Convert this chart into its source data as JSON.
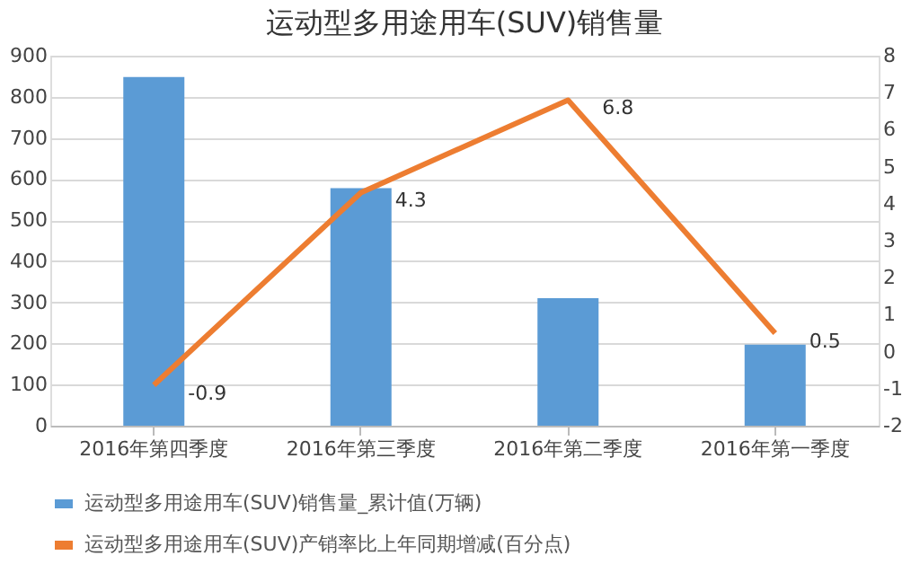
{
  "chart_data": {
    "type": "bar",
    "title": "运动型多用途用车(SUV)销售量",
    "categories": [
      "2016年第四季度",
      "2016年第三季度",
      "2016年第二季度",
      "2016年第一季度"
    ],
    "series": [
      {
        "name": "运动型多用途用车(SUV)销售量_累计值(万辆)",
        "color": "#5b9bd5",
        "values": [
          848,
          578,
          310,
          197
        ]
      },
      {
        "name": "运动型多用途用车(SUV)产销率比上年同期增减(百分点)",
        "type": "line",
        "axis": "y2",
        "color": "#ed7d31",
        "values": [
          -0.9,
          4.3,
          6.8,
          0.5
        ],
        "value_labels": [
          "-0.9",
          "4.3",
          "6.8",
          "0.5"
        ]
      }
    ],
    "ylim": [
      0,
      900
    ],
    "yticks": [
      0,
      100,
      200,
      300,
      400,
      500,
      600,
      700,
      800,
      900
    ],
    "y2lim": [
      -2,
      8
    ],
    "y2ticks": [
      -2,
      -1,
      0,
      1,
      2,
      3,
      4,
      5,
      6,
      7,
      8
    ],
    "grid": "y",
    "legend": "bottom"
  }
}
